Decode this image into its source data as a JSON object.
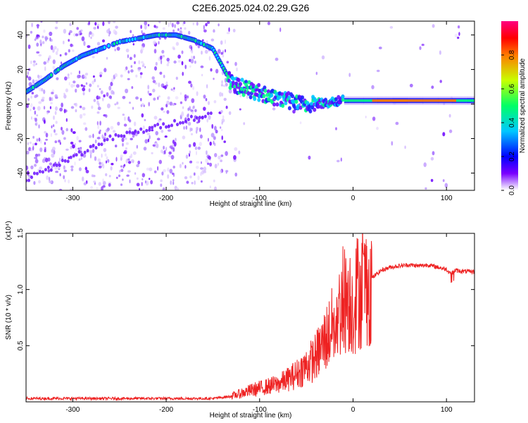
{
  "figure": {
    "title": "C2E6.2025.024.02.29.G26"
  },
  "chart_data": [
    {
      "type": "heatmap",
      "xlabel": "Height of straight line (km)",
      "ylabel": "Frequency (Hz)",
      "xlim": [
        -350,
        130
      ],
      "ylim": [
        -50,
        48
      ],
      "xticks": [
        -300,
        -200,
        -100,
        0,
        100
      ],
      "yticks": [
        -40,
        -20,
        0,
        20,
        40
      ],
      "colorbar": {
        "label": "Normalized spectral amplitude",
        "range": [
          0,
          1
        ],
        "ticks": [
          "0.0",
          "0.2",
          "0.4",
          "0.6",
          "0.8"
        ],
        "colormap": [
          "#ffffff",
          "#c9a6ff",
          "#7a00ff",
          "#0000ff",
          "#00c8ff",
          "#00ff66",
          "#c8ff00",
          "#ff7a00",
          "#ff0000",
          "#ff0080"
        ]
      },
      "features": {
        "main_tone": {
          "x": [
            -350,
            -330,
            -310,
            -290,
            -270,
            -250,
            -230,
            -210,
            -190,
            -170,
            -150,
            -130,
            -110,
            -90,
            -70,
            -50,
            -30,
            -10,
            10,
            30,
            60,
            90,
            130
          ],
          "y": [
            7,
            14,
            22,
            28,
            32,
            36,
            38,
            40,
            40,
            37,
            32,
            12,
            8,
            5,
            2,
            -1,
            1,
            2,
            2,
            2,
            2,
            2,
            2
          ]
        },
        "secondary_tone": {
          "x": [
            -350,
            -320,
            -290,
            -260,
            -230,
            -200,
            -170,
            -150
          ],
          "y": [
            -44,
            -36,
            -28,
            -20,
            -16,
            -12,
            -8,
            -6
          ]
        }
      }
    },
    {
      "type": "line",
      "xlabel": "Height of straight line (km)",
      "ylabel": "SNR (10 * v/v)",
      "y_multiplier": "(x10⁴)",
      "xlim": [
        -350,
        130
      ],
      "ylim": [
        0,
        1.5
      ],
      "xticks": [
        -300,
        -200,
        -100,
        0,
        100
      ],
      "yticks": [
        "0.5",
        "1.0",
        "1.5"
      ],
      "color": "#ee2222",
      "series": [
        {
          "x": [
            -350,
            -300,
            -250,
            -200,
            -150,
            -130,
            -110,
            -100,
            -90,
            -80,
            -70,
            -60,
            -50,
            -40,
            -30,
            -20,
            -15,
            -10,
            -5,
            0,
            5,
            10,
            15,
            20,
            30,
            40,
            50,
            60,
            70,
            80,
            90,
            100,
            105,
            110,
            120,
            130
          ],
          "y": [
            0.03,
            0.03,
            0.03,
            0.03,
            0.03,
            0.05,
            0.1,
            0.12,
            0.14,
            0.16,
            0.2,
            0.25,
            0.32,
            0.4,
            0.55,
            0.7,
            0.8,
            0.9,
            0.95,
            0.85,
            1.0,
            1.0,
            1.05,
            1.1,
            1.17,
            1.2,
            1.21,
            1.22,
            1.21,
            1.22,
            1.2,
            1.18,
            1.14,
            1.17,
            1.16,
            1.16
          ]
        }
      ]
    }
  ]
}
